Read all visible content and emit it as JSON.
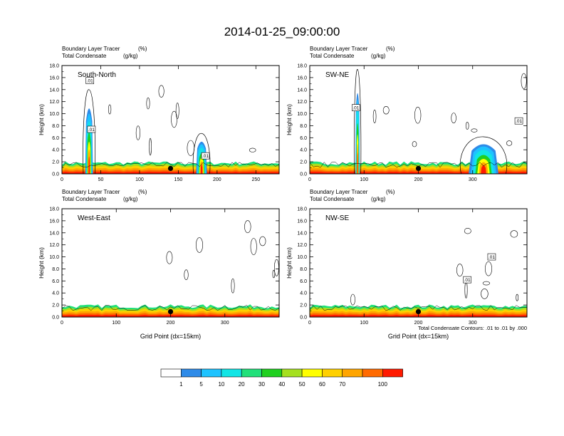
{
  "figure": {
    "title": "2014-01-25_09:00:00",
    "footnote": "Total Condensate Contours: .01 to .01 by .000",
    "colorbar": {
      "labels": [
        "1",
        "5",
        "10",
        "20",
        "30",
        "40",
        "50",
        "60",
        "70",
        "100"
      ],
      "colors": [
        "#ffffff",
        "#2f8be8",
        "#1ec3ff",
        "#12e5e5",
        "#21e07a",
        "#20d020",
        "#a5e020",
        "#ffff00",
        "#ffd000",
        "#ffa500",
        "#ff6a00",
        "#ff1a00"
      ]
    }
  },
  "chart_data": [
    {
      "type": "heatmap",
      "panel_label": "South-North",
      "subtitle_left_1": "Boundary Layer Tracer",
      "subtitle_unit_1": "(%)",
      "subtitle_left_2": "Total Condensate",
      "subtitle_unit_2": "(g/kg)",
      "ylabel": "Height (km)",
      "xlabel": "",
      "xlim": [
        0,
        280
      ],
      "ylim": [
        0,
        18
      ],
      "xticks": [
        0,
        50,
        100,
        150,
        200,
        250
      ],
      "yticks": [
        0.0,
        2.0,
        4.0,
        6.0,
        8.0,
        10.0,
        12.0,
        14.0,
        16.0,
        18.0
      ],
      "contour_labels": [
        {
          "x": 36,
          "y": 15.5,
          "text": ".01"
        },
        {
          "x": 38,
          "y": 7.4,
          "text": ".01"
        },
        {
          "x": 185,
          "y": 3.0,
          "text": ".01"
        }
      ],
      "marker": {
        "x": 140,
        "y": 0.9
      },
      "plumes": [
        {
          "x": 35,
          "width": 10,
          "top": 12.5
        },
        {
          "x": 180,
          "width": 14,
          "top": 6.0
        }
      ],
      "boundary_layer_top": 1.8
    },
    {
      "type": "heatmap",
      "panel_label": "SW-NE",
      "subtitle_left_1": "Boundary Layer Tracer",
      "subtitle_unit_1": "(%)",
      "subtitle_left_2": "Total Condensate",
      "subtitle_unit_2": "(g/kg)",
      "ylabel": "Height (km)",
      "xlabel": "",
      "xlim": [
        0,
        400
      ],
      "ylim": [
        0,
        18
      ],
      "xticks": [
        0,
        100,
        200,
        300
      ],
      "yticks": [
        0.0,
        2.0,
        4.0,
        6.0,
        8.0,
        10.0,
        12.0,
        14.0,
        16.0,
        18.0
      ],
      "contour_labels": [
        {
          "x": 85,
          "y": 11.0,
          "text": ".01"
        },
        {
          "x": 385,
          "y": 8.8,
          "text": ".01"
        }
      ],
      "marker": {
        "x": 200,
        "y": 0.9
      },
      "plumes": [
        {
          "x": 88,
          "width": 8,
          "top": 15.5
        },
        {
          "x": 320,
          "width": 55,
          "top": 5.5
        }
      ],
      "boundary_layer_top": 1.8
    },
    {
      "type": "heatmap",
      "panel_label": "West-East",
      "subtitle_left_1": "Boundary Layer Tracer",
      "subtitle_unit_1": "(%)",
      "subtitle_left_2": "Total Condensate",
      "subtitle_unit_2": "(g/kg)",
      "ylabel": "Height (km)",
      "xlabel": "Grid Point (dx=15km)",
      "xlim": [
        0,
        400
      ],
      "ylim": [
        0,
        18
      ],
      "xticks": [
        0,
        100,
        200,
        300
      ],
      "yticks": [
        0.0,
        2.0,
        4.0,
        6.0,
        8.0,
        10.0,
        12.0,
        14.0,
        16.0,
        18.0
      ],
      "contour_labels": [],
      "marker": {
        "x": 200,
        "y": 0.9
      },
      "plumes": [],
      "boundary_layer_top": 1.8
    },
    {
      "type": "heatmap",
      "panel_label": "NW-SE",
      "subtitle_left_1": "Boundary Layer Tracer",
      "subtitle_unit_1": "(%)",
      "subtitle_left_2": "Total Condensate",
      "subtitle_unit_2": "(g/kg)",
      "ylabel": "Height (km)",
      "xlabel": "Grid Point (dx=15km)",
      "xlim": [
        0,
        400
      ],
      "ylim": [
        0,
        18
      ],
      "xticks": [
        0,
        100,
        200,
        300
      ],
      "yticks": [
        0.0,
        2.0,
        4.0,
        6.0,
        8.0,
        10.0,
        12.0,
        14.0,
        16.0,
        18.0
      ],
      "contour_labels": [
        {
          "x": 335,
          "y": 10.0,
          "text": ".01"
        },
        {
          "x": 290,
          "y": 6.2,
          "text": ".01"
        }
      ],
      "marker": {
        "x": 200,
        "y": 0.9
      },
      "plumes": [],
      "boundary_layer_top": 1.8
    }
  ]
}
